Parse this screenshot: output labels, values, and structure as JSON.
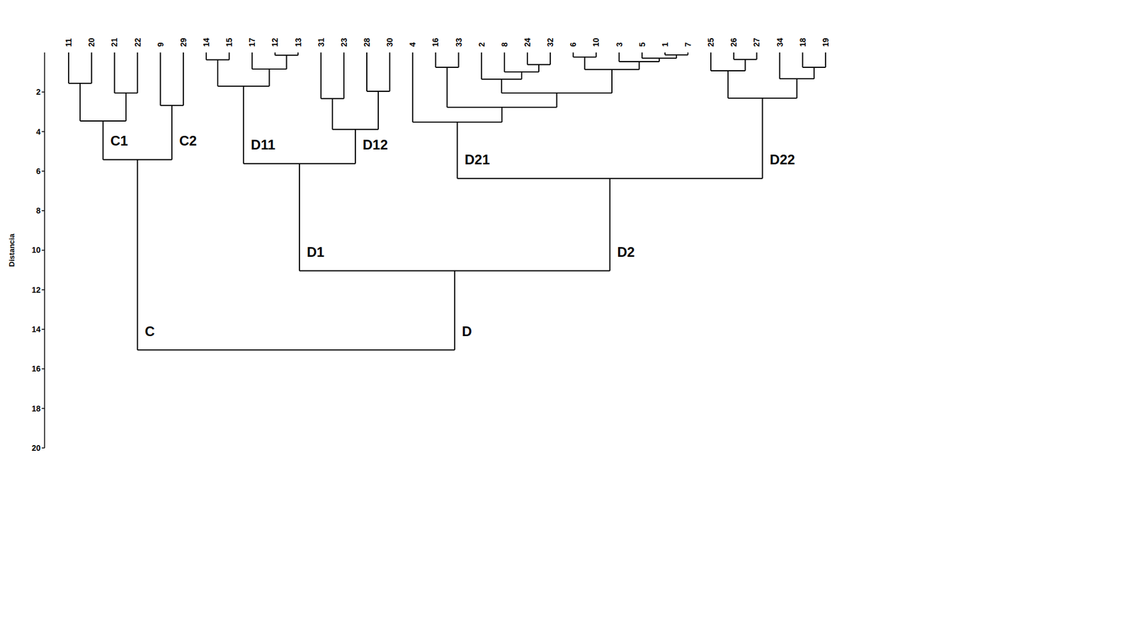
{
  "chart_data": {
    "type": "dendrogram",
    "y_label": "Distancia",
    "ylim": [
      0,
      20
    ],
    "yticks": [
      2,
      4,
      6,
      8,
      10,
      12,
      14,
      16,
      18,
      20
    ],
    "grid": false,
    "tree": {
      "height": 15.04,
      "children": [
        {
          "label": "C",
          "height": 5.42,
          "children": [
            {
              "label": "C1",
              "height": 3.46,
              "children": [
                {
                  "height": 1.56,
                  "children": [
                    "11",
                    "20"
                  ]
                },
                {
                  "height": 2.05,
                  "children": [
                    "21",
                    "22"
                  ]
                }
              ]
            },
            {
              "label": "C2",
              "height": 2.68,
              "children": [
                "9",
                "29"
              ]
            }
          ]
        },
        {
          "label": "D",
          "height": 11.04,
          "children": [
            {
              "label": "D1",
              "height": 5.62,
              "children": [
                {
                  "label": "D11",
                  "height": 1.7,
                  "children": [
                    {
                      "height": 0.37,
                      "children": [
                        "14",
                        "15"
                      ]
                    },
                    {
                      "height": 0.84,
                      "children": [
                        "17",
                        {
                          "height": 0.14,
                          "children": [
                            "12",
                            "13"
                          ]
                        }
                      ]
                    }
                  ]
                },
                {
                  "label": "D12",
                  "height": 3.89,
                  "children": [
                    {
                      "height": 2.33,
                      "children": [
                        "31",
                        "23"
                      ]
                    },
                    {
                      "height": 1.96,
                      "children": [
                        "28",
                        "30"
                      ]
                    }
                  ]
                }
              ]
            },
            {
              "label": "D2",
              "height": 6.37,
              "children": [
                {
                  "label": "D21",
                  "height": 3.52,
                  "children": [
                    "4",
                    {
                      "height": 2.77,
                      "children": [
                        {
                          "height": 0.75,
                          "children": [
                            "16",
                            "33"
                          ]
                        },
                        {
                          "height": 2.05,
                          "children": [
                            {
                              "height": 1.35,
                              "children": [
                                "2",
                                {
                                  "height": 0.98,
                                  "children": [
                                    "8",
                                    {
                                      "height": 0.61,
                                      "children": [
                                        "24",
                                        "32"
                                      ]
                                    }
                                  ]
                                }
                              ]
                            },
                            {
                              "height": 0.86,
                              "children": [
                                {
                                  "height": 0.23,
                                  "children": [
                                    "6",
                                    "10"
                                  ]
                                },
                                {
                                  "height": 0.46,
                                  "children": [
                                    "3",
                                    {
                                      "height": 0.29,
                                      "children": [
                                        "5",
                                        {
                                          "height": 0.12,
                                          "children": [
                                            "1",
                                            "7"
                                          ]
                                        }
                                      ]
                                    }
                                  ]
                                }
                              ]
                            }
                          ]
                        }
                      ]
                    }
                  ]
                },
                {
                  "label": "D22",
                  "height": 2.31,
                  "children": [
                    {
                      "height": 0.92,
                      "children": [
                        "25",
                        {
                          "height": 0.35,
                          "children": [
                            "26",
                            "27"
                          ]
                        }
                      ]
                    },
                    {
                      "height": 1.33,
                      "children": [
                        "34",
                        {
                          "height": 0.75,
                          "children": [
                            "18",
                            "19"
                          ]
                        }
                      ]
                    }
                  ]
                }
              ]
            }
          ]
        }
      ]
    }
  }
}
